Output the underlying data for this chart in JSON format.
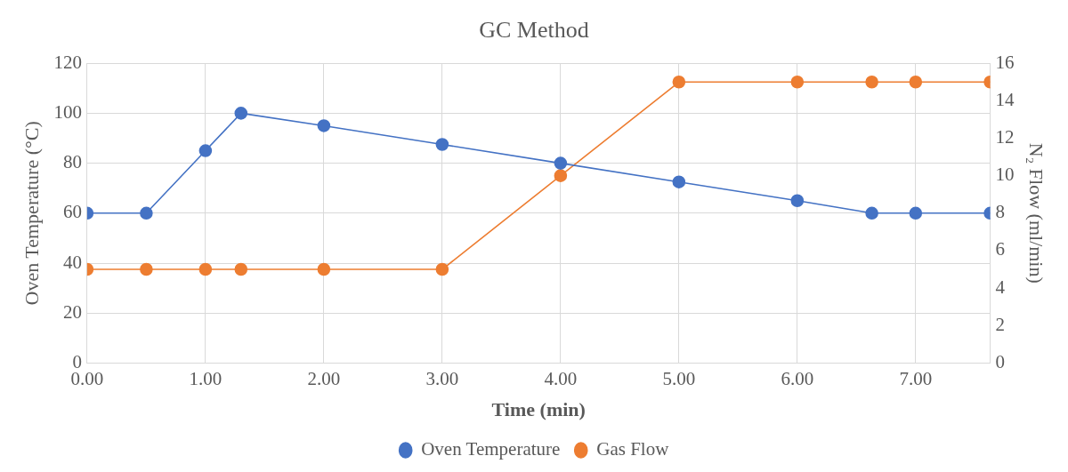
{
  "chart_data": {
    "type": "line",
    "title": "GC Method",
    "xlabel": "Time (min)",
    "ylabel": "Oven Temperature (°C)",
    "y2label": "N₂ Flow (ml/min)",
    "x": [
      0,
      0.5,
      1,
      1.3,
      2,
      3,
      4,
      5,
      6,
      6.63,
      7,
      7.63
    ],
    "series": [
      {
        "name": "Oven Temperature",
        "color": "#4472c4",
        "values": [
          60,
          60,
          85,
          100,
          95,
          87.5,
          80,
          72.5,
          65,
          60,
          60,
          60
        ]
      },
      {
        "name": "Gas Flow",
        "color": "#ed7d31",
        "axis": "y2",
        "values": [
          5,
          5,
          5,
          5,
          5,
          5,
          10,
          15,
          15,
          15,
          15,
          15
        ]
      }
    ],
    "xlim": [
      0,
      7.63
    ],
    "xticks": [
      {
        "value": 0,
        "label": "0.00"
      },
      {
        "value": 1,
        "label": "1.00"
      },
      {
        "value": 2,
        "label": "2.00"
      },
      {
        "value": 3,
        "label": "3.00"
      },
      {
        "value": 4,
        "label": "4.00"
      },
      {
        "value": 5,
        "label": "5.00"
      },
      {
        "value": 6,
        "label": "6.00"
      },
      {
        "value": 7,
        "label": "7.00"
      }
    ],
    "ylim": [
      0,
      120
    ],
    "yticks": [
      0,
      20,
      40,
      60,
      80,
      100,
      120
    ],
    "y2lim": [
      0,
      16
    ],
    "y2ticks": [
      0,
      2,
      4,
      6,
      8,
      10,
      12,
      14,
      16
    ],
    "grid": true,
    "legend": "bottom",
    "marker": "circle",
    "line_style": "solid"
  }
}
